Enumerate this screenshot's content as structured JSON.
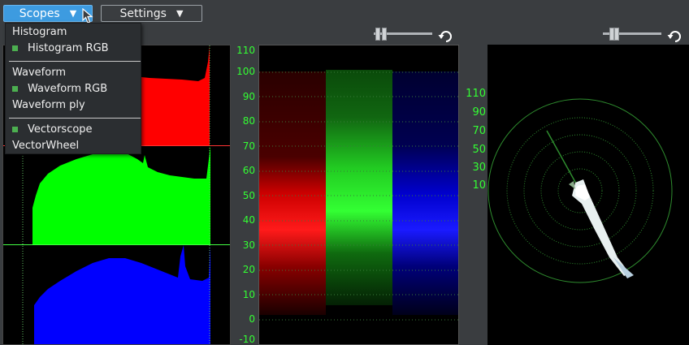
{
  "toolbar": {
    "scopes_label": "Scopes",
    "settings_label": "Settings",
    "dropdown_arrow": "▼"
  },
  "menu": {
    "items": [
      {
        "label": "Histogram",
        "checked": false
      },
      {
        "label": "Histogram RGB",
        "checked": true
      },
      {
        "label": "Waveform",
        "checked": false
      },
      {
        "label": "Waveform RGB",
        "checked": true
      },
      {
        "label": "Waveform ply",
        "checked": false
      },
      {
        "label": "Vectorscope",
        "checked": true
      },
      {
        "label": "VectorWheel",
        "checked": false
      }
    ]
  },
  "waveform": {
    "scale_labels": [
      "110",
      "100",
      "90",
      "80",
      "70",
      "60",
      "50",
      "40",
      "30",
      "20",
      "10",
      "0",
      "-10"
    ]
  },
  "vectorscope": {
    "scale_labels": [
      "110",
      "90",
      "70",
      "50",
      "30",
      "10"
    ]
  },
  "colors": {
    "background": "#3a3d40",
    "accent": "#3d9be0",
    "scale_green": "#33ff33",
    "red_channel": "#ff0000",
    "green_channel": "#00ff00",
    "blue_channel": "#0000ff"
  },
  "icons": {
    "reset": "undo-arrow-icon",
    "cursor": "mouse-pointer-icon"
  }
}
